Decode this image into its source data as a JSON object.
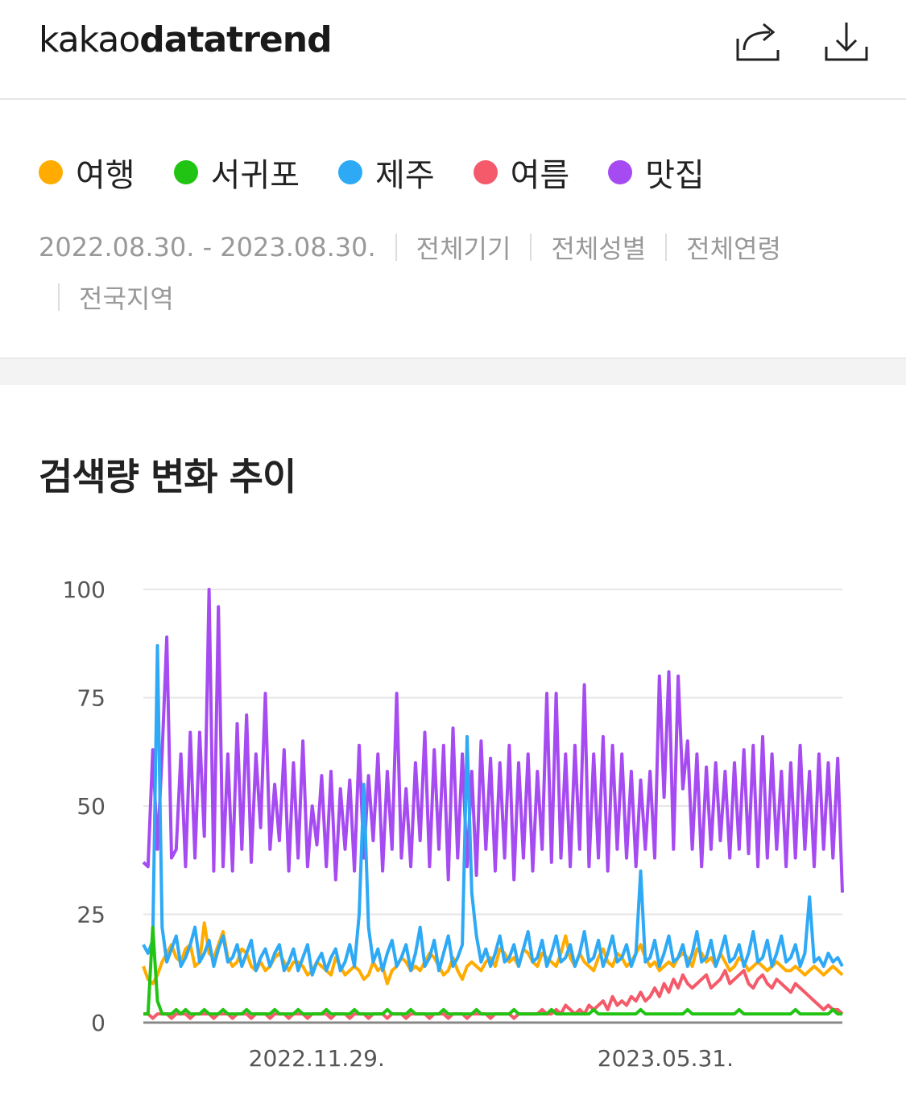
{
  "header": {
    "logo_light": "kakao",
    "logo_bold": "datatrend",
    "share_icon": "share-icon",
    "download_icon": "download-icon"
  },
  "legend": [
    {
      "label": "여행",
      "color": "#FFAB00"
    },
    {
      "label": "서귀포",
      "color": "#22C414"
    },
    {
      "label": "제주",
      "color": "#2EA9F5"
    },
    {
      "label": "여름",
      "color": "#F45A6A"
    },
    {
      "label": "맛집",
      "color": "#A64AF2"
    }
  ],
  "filters": {
    "date_range": "2022.08.30. - 2023.08.30.",
    "device": "전체기기",
    "gender": "전체성별",
    "age": "전체연령",
    "region": "전국지역"
  },
  "chart_title": "검색량 변화 추이",
  "chart_data": {
    "type": "line",
    "x_start": "2022.08.30.",
    "x_end": "2023.08.30.",
    "x_tick_labels": [
      "2022.11.29.",
      "2023.05.31."
    ],
    "y_ticks": [
      0,
      25,
      50,
      75,
      100
    ],
    "ylim": [
      0,
      100
    ],
    "grid": true,
    "legend_position": "top",
    "series": [
      {
        "name": "여행",
        "color": "#FFAB00",
        "values": [
          13,
          10,
          9,
          11,
          14,
          16,
          18,
          15,
          14,
          17,
          18,
          13,
          14,
          23,
          16,
          15,
          18,
          21,
          15,
          13,
          14,
          17,
          16,
          13,
          12,
          14,
          12,
          13,
          15,
          16,
          14,
          12,
          14,
          14,
          13,
          11,
          12,
          14,
          13,
          12,
          11,
          15,
          13,
          11,
          12,
          13,
          12,
          10,
          11,
          14,
          12,
          13,
          9,
          12,
          13,
          15,
          14,
          12,
          13,
          12,
          14,
          16,
          15,
          13,
          11,
          12,
          15,
          12,
          10,
          13,
          14,
          13,
          12,
          14,
          15,
          13,
          17,
          16,
          14,
          15,
          13,
          17,
          16,
          14,
          13,
          16,
          15,
          14,
          13,
          16,
          20,
          15,
          13,
          16,
          14,
          13,
          12,
          15,
          17,
          14,
          13,
          16,
          15,
          13,
          14,
          16,
          18,
          15,
          13,
          14,
          12,
          13,
          14,
          13,
          15,
          16,
          15,
          13,
          17,
          16,
          14,
          15,
          13,
          16,
          14,
          12,
          13,
          15,
          14,
          12,
          13,
          14,
          13,
          12,
          13,
          14,
          13,
          12,
          12,
          13,
          12,
          11,
          12,
          13,
          12,
          11,
          12,
          13,
          12,
          11
        ]
      },
      {
        "name": "서귀포",
        "color": "#22C414",
        "values": [
          2,
          2,
          22,
          5,
          2,
          2,
          2,
          3,
          2,
          3,
          2,
          2,
          2,
          3,
          2,
          2,
          2,
          3,
          2,
          2,
          2,
          2,
          3,
          2,
          2,
          2,
          2,
          2,
          3,
          2,
          2,
          2,
          2,
          3,
          2,
          2,
          2,
          2,
          2,
          3,
          2,
          2,
          2,
          2,
          2,
          3,
          2,
          2,
          2,
          2,
          2,
          2,
          3,
          2,
          2,
          2,
          2,
          3,
          2,
          2,
          2,
          2,
          2,
          2,
          3,
          2,
          2,
          2,
          2,
          2,
          2,
          3,
          2,
          2,
          2,
          2,
          2,
          2,
          2,
          3,
          2,
          2,
          2,
          2,
          2,
          2,
          2,
          3,
          2,
          2,
          2,
          2,
          2,
          2,
          2,
          2,
          3,
          2,
          2,
          2,
          2,
          2,
          2,
          2,
          2,
          2,
          3,
          2,
          2,
          2,
          2,
          2,
          2,
          2,
          2,
          2,
          3,
          2,
          2,
          2,
          2,
          2,
          2,
          2,
          2,
          2,
          2,
          3,
          2,
          2,
          2,
          2,
          2,
          2,
          2,
          2,
          2,
          2,
          2,
          3,
          2,
          2,
          2,
          2,
          2,
          2,
          2,
          3,
          2,
          2
        ]
      },
      {
        "name": "제주",
        "color": "#2EA9F5",
        "values": [
          18,
          16,
          19,
          87,
          22,
          14,
          17,
          20,
          13,
          15,
          18,
          22,
          14,
          16,
          19,
          13,
          17,
          20,
          14,
          15,
          18,
          13,
          16,
          19,
          12,
          15,
          17,
          13,
          16,
          18,
          12,
          14,
          17,
          12,
          15,
          18,
          11,
          14,
          16,
          12,
          15,
          17,
          12,
          14,
          18,
          13,
          25,
          55,
          22,
          14,
          17,
          12,
          16,
          19,
          13,
          15,
          18,
          12,
          16,
          22,
          13,
          15,
          19,
          12,
          16,
          20,
          13,
          15,
          18,
          66,
          30,
          20,
          14,
          17,
          13,
          16,
          20,
          14,
          15,
          18,
          13,
          17,
          21,
          14,
          15,
          19,
          13,
          16,
          20,
          14,
          15,
          18,
          13,
          16,
          21,
          14,
          15,
          19,
          13,
          16,
          20,
          14,
          15,
          18,
          13,
          16,
          35,
          14,
          15,
          19,
          13,
          16,
          20,
          14,
          15,
          18,
          13,
          16,
          21,
          14,
          15,
          19,
          13,
          16,
          20,
          14,
          15,
          18,
          13,
          16,
          21,
          14,
          15,
          19,
          13,
          16,
          20,
          14,
          15,
          18,
          13,
          16,
          29,
          14,
          15,
          13,
          16,
          14,
          15,
          13
        ]
      },
      {
        "name": "여름",
        "color": "#F45A6A",
        "values": [
          2,
          2,
          1,
          2,
          2,
          2,
          1,
          2,
          2,
          2,
          1,
          2,
          2,
          2,
          2,
          1,
          2,
          2,
          2,
          1,
          2,
          2,
          2,
          1,
          2,
          2,
          2,
          1,
          2,
          2,
          2,
          1,
          2,
          2,
          2,
          1,
          2,
          2,
          2,
          2,
          1,
          2,
          2,
          2,
          1,
          2,
          2,
          2,
          1,
          2,
          2,
          2,
          1,
          2,
          2,
          2,
          1,
          2,
          2,
          2,
          2,
          1,
          2,
          2,
          2,
          1,
          2,
          2,
          2,
          1,
          2,
          2,
          2,
          2,
          1,
          2,
          2,
          2,
          2,
          1,
          2,
          2,
          2,
          2,
          2,
          3,
          2,
          2,
          3,
          2,
          4,
          3,
          2,
          3,
          2,
          4,
          3,
          4,
          5,
          3,
          6,
          4,
          5,
          4,
          6,
          5,
          7,
          5,
          6,
          8,
          6,
          9,
          7,
          10,
          8,
          11,
          9,
          8,
          9,
          10,
          11,
          8,
          9,
          10,
          12,
          9,
          10,
          11,
          12,
          9,
          8,
          10,
          11,
          9,
          8,
          10,
          9,
          8,
          7,
          9,
          8,
          7,
          6,
          5,
          4,
          3,
          4,
          3,
          3,
          2
        ]
      },
      {
        "name": "맛집",
        "color": "#A64AF2",
        "values": [
          37,
          36,
          63,
          40,
          62,
          89,
          38,
          40,
          62,
          36,
          67,
          38,
          67,
          43,
          100,
          35,
          96,
          36,
          62,
          35,
          69,
          40,
          71,
          37,
          62,
          45,
          76,
          40,
          55,
          42,
          63,
          35,
          60,
          38,
          65,
          36,
          50,
          41,
          57,
          36,
          58,
          33,
          54,
          40,
          56,
          35,
          64,
          38,
          57,
          42,
          62,
          35,
          58,
          40,
          76,
          38,
          54,
          36,
          60,
          42,
          67,
          36,
          63,
          40,
          64,
          33,
          68,
          38,
          62,
          36,
          58,
          34,
          65,
          40,
          61,
          35,
          60,
          38,
          64,
          33,
          60,
          38,
          62,
          35,
          58,
          40,
          76,
          37,
          76,
          38,
          62,
          36,
          64,
          40,
          78,
          36,
          62,
          38,
          66,
          35,
          64,
          40,
          62,
          38,
          58,
          36,
          56,
          40,
          58,
          38,
          80,
          52,
          81,
          40,
          80,
          54,
          65,
          40,
          62,
          36,
          59,
          40,
          60,
          42,
          58,
          38,
          60,
          40,
          63,
          39,
          64,
          36,
          66,
          38,
          62,
          40,
          58,
          36,
          60,
          38,
          64,
          40,
          58,
          36,
          62,
          40,
          60,
          38,
          61,
          30
        ]
      }
    ]
  }
}
